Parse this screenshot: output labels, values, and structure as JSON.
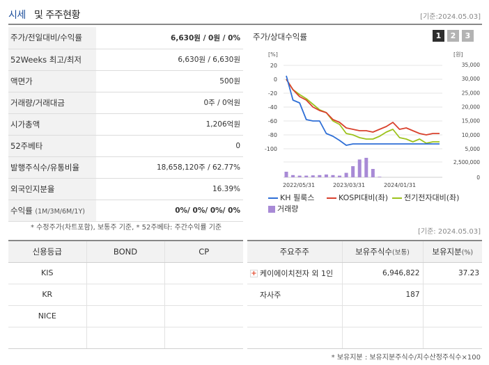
{
  "header": {
    "title_blue": "시세",
    "title_rest": "및 주주현황",
    "date": "[기준:2024.05.03]"
  },
  "quote": {
    "rows": [
      {
        "label": "주가/전일대비/수익률",
        "value_bold": "6,630",
        "value_rest": "원 / 0원 / 0%",
        "bold": true
      },
      {
        "label": "52Weeks 최고/최저",
        "value_rest": "6,630원 / 6,630원"
      },
      {
        "label": "액면가",
        "value_rest": "500원"
      },
      {
        "label": "거래량/거래대금",
        "value_rest": "0주 / 0억원"
      },
      {
        "label": "시가총액",
        "value_rest": "1,206억원"
      },
      {
        "label": "52주베타",
        "value_rest": "0"
      },
      {
        "label": "발행주식수/유통비율",
        "value_rest": "18,658,120주 / 62.77%"
      },
      {
        "label": "외국인지분율",
        "value_rest": "16.39%"
      }
    ],
    "return_label": "수익률",
    "return_sub": "(1M/3M/6M/1Y)",
    "return_value": "0%/ 0%/ 0%/ 0%",
    "note": "* 수정주가(차트포함), 보통주 기준, * 52주베타: 주간수익률 기준"
  },
  "chart": {
    "title": "주가/상대수익률",
    "pages": [
      "1",
      "2",
      "3"
    ],
    "active_page": "1",
    "left_unit": "[%]",
    "right_unit": "[원]"
  },
  "chart_data": {
    "type": "line",
    "x_ticks": [
      "2022/05/31",
      "2023/03/31",
      "2024/01/31"
    ],
    "left_axis": {
      "label": "[%]",
      "ticks": [
        20,
        0,
        -20,
        -40,
        -60,
        -80,
        -100
      ],
      "ylim": [
        -100,
        20
      ]
    },
    "right_axis": {
      "label": "[원]",
      "ticks": [
        35000,
        30000,
        25000,
        20000,
        15000,
        10000,
        5000
      ],
      "ylim": [
        5000,
        35000
      ]
    },
    "volume_axis": {
      "ticks": [
        2500000,
        0
      ]
    },
    "series": [
      {
        "name": "KH 필룩스",
        "color": "#2f6fd6",
        "axis": "left",
        "values": [
          5,
          -30,
          -34,
          -58,
          -60,
          -60,
          -78,
          -82,
          -88,
          -95,
          -93,
          -93,
          -93,
          -93,
          -93,
          -93,
          -93,
          -93,
          -93,
          -93,
          -93,
          -93,
          -93,
          -93
        ]
      },
      {
        "name": "KOSPI대비(좌)",
        "color": "#d9412d",
        "axis": "left",
        "values": [
          0,
          -15,
          -25,
          -30,
          -40,
          -45,
          -48,
          -58,
          -62,
          -70,
          -72,
          -74,
          -74,
          -76,
          -72,
          -68,
          -62,
          -72,
          -70,
          -74,
          -78,
          -80,
          -78,
          -78
        ]
      },
      {
        "name": "전기전자대비(좌)",
        "color": "#9cc21b",
        "axis": "left",
        "values": [
          0,
          -15,
          -22,
          -28,
          -36,
          -44,
          -48,
          -60,
          -65,
          -78,
          -80,
          -84,
          -86,
          -86,
          -82,
          -76,
          -72,
          -84,
          -86,
          -90,
          -86,
          -92,
          -90,
          -90
        ]
      },
      {
        "name": "거래량",
        "color": "#a88ad6",
        "type": "bar",
        "values": [
          1.0,
          0.4,
          0.3,
          0.3,
          0.35,
          0.4,
          0.5,
          0.4,
          0.3,
          0.8,
          2.0,
          3.2,
          3.5,
          1.5,
          0.1,
          0,
          0,
          0,
          0,
          0,
          0,
          0,
          0,
          0
        ]
      }
    ]
  },
  "legend": {
    "kh": "KH 필룩스",
    "kospi": "KOSPI대비(좌)",
    "elec": "전기전자대비(좌)",
    "vol": "거래량"
  },
  "date2": "[기준: 2024.05.03]",
  "rating": {
    "headers": [
      "신용등급",
      "BOND",
      "CP"
    ],
    "rows": [
      [
        "KIS",
        "",
        ""
      ],
      [
        "KR",
        "",
        ""
      ],
      [
        "NICE",
        "",
        ""
      ],
      [
        "",
        "",
        ""
      ]
    ]
  },
  "holders": {
    "headers": [
      "주요주주",
      "보유주식수",
      "(보통)",
      "보유지분",
      "(%)"
    ],
    "rows": [
      {
        "name": "케이에이치전자 외 1인",
        "shares": "6,946,822",
        "pct": "37.23",
        "expand": "+"
      },
      {
        "name": "자사주",
        "shares": "187",
        "pct": ""
      },
      {
        "name": "",
        "shares": "",
        "pct": ""
      },
      {
        "name": "",
        "shares": "",
        "pct": ""
      }
    ],
    "note": "* 보유지분 : 보유지분주식수/지수산정주식수×100"
  }
}
